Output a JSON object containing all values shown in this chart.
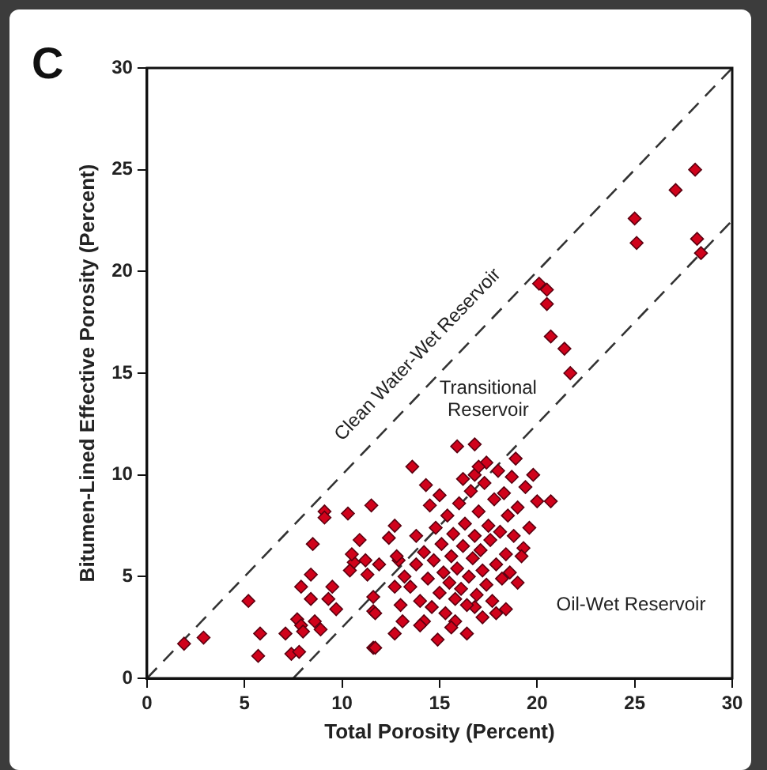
{
  "chart_data": {
    "type": "scatter",
    "title": "C",
    "xlabel": "Total Porosity (Percent)",
    "ylabel": "Bitumen-Lined Effective Porosity (Percent)",
    "xlim": [
      0,
      30
    ],
    "ylim": [
      0,
      30
    ],
    "xticks": [
      0,
      5,
      10,
      15,
      20,
      25,
      30
    ],
    "yticks": [
      0,
      5,
      10,
      15,
      20,
      25,
      30
    ],
    "grid": false,
    "legend": false,
    "marker": "diamond",
    "annotations": [
      "Clean Water-Wet Reservoir",
      "Transitional Reservoir",
      "Oil-Wet Reservoir"
    ],
    "series": [
      {
        "type": "line",
        "color": "#333333",
        "line_style": "dashed",
        "marker": "none",
        "x": [
          0,
          30
        ],
        "values": [
          0,
          30
        ]
      },
      {
        "type": "line",
        "color": "#333333",
        "line_style": "dashed",
        "marker": "none",
        "x": [
          7.5,
          30
        ],
        "values": [
          0,
          22.5
        ]
      },
      {
        "color": "#d0021b",
        "x": [
          1.9,
          2.9,
          5.2,
          5.8,
          5.7,
          7.1,
          7.4,
          7.8,
          7.7,
          7.9,
          8.0,
          8.6,
          8.9,
          7.9,
          8.4,
          8.4,
          8.5,
          9.1,
          9.1,
          10.3,
          11.5,
          9.5,
          9.3,
          9.7,
          10.9,
          10.6,
          11.6,
          11.6,
          15.9,
          16.8,
          13.6,
          14.3,
          12.7,
          13.8,
          12.4,
          10.5,
          11.2,
          11.9,
          12.9,
          10.4,
          11.3,
          12.7,
          11.6,
          11.7,
          13.1,
          12.7,
          11.7,
          14.9,
          14.2,
          15.8,
          16.8,
          17.9,
          19.0,
          19.3,
          20.0,
          20.7,
          18.9,
          17.4,
          16.8,
          13.5,
          13.8,
          14.0,
          14.2,
          14.4,
          14.6,
          14.7,
          14.8,
          15.0,
          15.1,
          15.2,
          15.3,
          15.4,
          15.5,
          15.6,
          15.7,
          15.8,
          15.9,
          16.0,
          16.1,
          16.2,
          16.3,
          16.4,
          16.5,
          16.6,
          16.7,
          16.8,
          16.9,
          17.0,
          17.1,
          17.2,
          17.3,
          17.4,
          17.5,
          17.6,
          17.7,
          17.8,
          17.9,
          18.0,
          18.1,
          18.2,
          18.3,
          18.4,
          18.5,
          18.6,
          18.7,
          18.8,
          19.0,
          19.2,
          19.4,
          19.6,
          19.8,
          15.0,
          14.5,
          16.2,
          17.0,
          13.2,
          12.8,
          13.0,
          15.6,
          16.4,
          17.2,
          14.0,
          18.4,
          28.1,
          27.1,
          25.0,
          25.1,
          28.2,
          28.4,
          20.1,
          20.5,
          20.5,
          20.7,
          21.4,
          21.7
        ],
        "values": [
          1.7,
          2.0,
          3.8,
          2.2,
          1.1,
          2.2,
          1.2,
          1.3,
          2.9,
          2.6,
          2.3,
          2.8,
          2.4,
          4.5,
          5.1,
          3.9,
          6.6,
          8.2,
          7.9,
          8.1,
          8.5,
          4.5,
          3.9,
          3.4,
          6.8,
          5.7,
          3.3,
          1.5,
          11.4,
          11.5,
          10.4,
          9.5,
          7.5,
          7.0,
          6.9,
          6.1,
          5.8,
          5.6,
          5.8,
          5.3,
          5.1,
          4.5,
          4.0,
          3.2,
          2.8,
          2.2,
          1.5,
          1.9,
          2.8,
          2.8,
          3.5,
          3.2,
          4.7,
          6.4,
          8.7,
          8.7,
          10.8,
          10.6,
          10.0,
          4.5,
          5.6,
          3.8,
          6.2,
          4.9,
          3.5,
          5.8,
          7.4,
          4.2,
          6.6,
          5.2,
          3.2,
          8.0,
          4.7,
          6.0,
          7.1,
          3.9,
          5.4,
          8.6,
          4.4,
          6.5,
          7.6,
          3.6,
          5.0,
          9.2,
          5.9,
          7.0,
          4.1,
          8.2,
          6.3,
          5.3,
          9.6,
          4.6,
          7.5,
          6.8,
          3.8,
          8.8,
          5.6,
          10.2,
          7.2,
          4.9,
          9.1,
          6.1,
          8.0,
          5.2,
          9.9,
          7.0,
          8.4,
          6.0,
          9.4,
          7.4,
          10.0,
          9.0,
          8.5,
          9.8,
          10.4,
          5.0,
          6.0,
          3.6,
          2.5,
          2.2,
          3.0,
          2.6,
          3.4,
          25.0,
          24.0,
          22.6,
          21.4,
          21.6,
          20.9,
          19.4,
          19.1,
          18.4,
          16.8,
          16.2,
          15.0
        ]
      }
    ]
  }
}
